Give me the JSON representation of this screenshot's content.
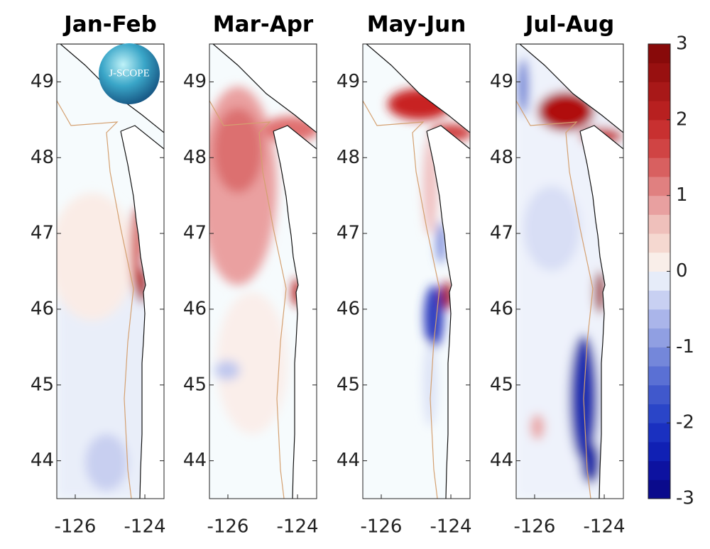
{
  "panels": [
    {
      "title": "Jan-Feb",
      "xlim": [
        -126.53,
        -123.45
      ],
      "ylim": [
        43.5,
        49.5
      ],
      "xticks": [
        -126,
        -124
      ],
      "yticks": [
        44,
        45,
        46,
        47,
        48,
        49
      ]
    },
    {
      "title": "Mar-Apr",
      "xlim": [
        -126.53,
        -123.45
      ],
      "ylim": [
        43.5,
        49.5
      ],
      "xticks": [
        -126,
        -124
      ],
      "yticks": [
        44,
        45,
        46,
        47,
        48,
        49
      ]
    },
    {
      "title": "May-Jun",
      "xlim": [
        -126.53,
        -123.45
      ],
      "ylim": [
        43.5,
        49.5
      ],
      "xticks": [
        -126,
        -124
      ],
      "yticks": [
        44,
        45,
        46,
        47,
        48,
        49
      ]
    },
    {
      "title": "Jul-Aug",
      "xlim": [
        -126.53,
        -123.45
      ],
      "ylim": [
        43.5,
        49.5
      ],
      "xticks": [
        -126,
        -124
      ],
      "yticks": [
        44,
        45,
        46,
        47,
        48,
        49
      ]
    }
  ],
  "colorbar": {
    "lim": [
      -3,
      3
    ],
    "ticks": [
      -3,
      -2,
      -1,
      0,
      1,
      2,
      3
    ],
    "colors": [
      "#0a0a8c",
      "#0d12a0",
      "#1020b4",
      "#1a30c0",
      "#2a45c8",
      "#4058cc",
      "#5a70d4",
      "#7487da",
      "#909fe2",
      "#aab5ea",
      "#c8d0f2",
      "#e6ecf9",
      "#f9eee9",
      "#f5d8d0",
      "#efc0bb",
      "#e8a0a0",
      "#e08080",
      "#d86060",
      "#d04444",
      "#c83030",
      "#b82020",
      "#a81818",
      "#981010",
      "#880a0a"
    ]
  },
  "logo": "J-SCOPE"
}
